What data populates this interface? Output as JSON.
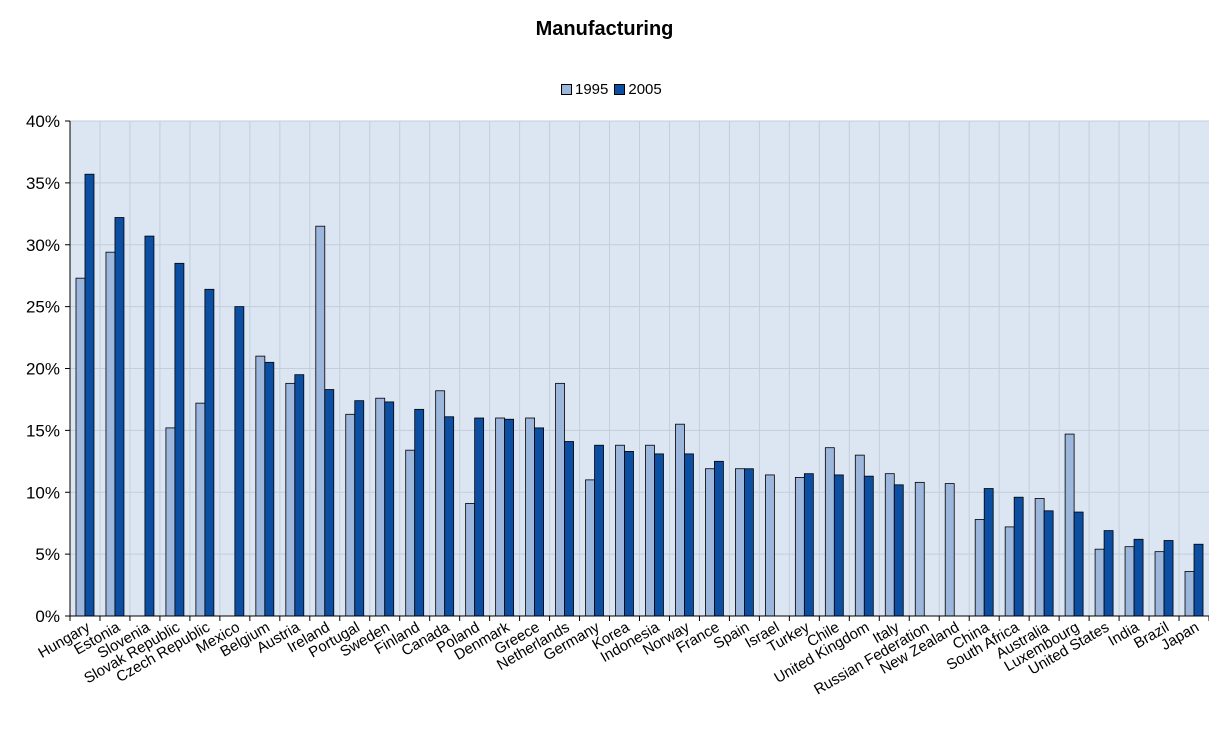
{
  "chart_data": {
    "type": "bar",
    "title": "Manufacturing",
    "xlabel": "",
    "ylabel": "",
    "ylim": [
      0,
      0.4
    ],
    "yticks": [
      0,
      0.05,
      0.1,
      0.15,
      0.2,
      0.25,
      0.3,
      0.35,
      0.4
    ],
    "ytick_labels": [
      "0%",
      "5%",
      "10%",
      "15%",
      "20%",
      "25%",
      "30%",
      "35%",
      "40%"
    ],
    "legend_position": "top-center",
    "grid": true,
    "categories": [
      "Hungary",
      "Estonia",
      "Slovenia",
      "Slovak Republic",
      "Czech Republic",
      "Mexico",
      "Belgium",
      "Austria",
      "Ireland",
      "Portugal",
      "Sweden",
      "Finland",
      "Canada",
      "Poland",
      "Denmark",
      "Greece",
      "Netherlands",
      "Germany",
      "Korea",
      "Indonesia",
      "Norway",
      "France",
      "Spain",
      "Israel",
      "Turkey",
      "Chile",
      "United Kingdom",
      "Italy",
      "Russian Federation",
      "New Zealand",
      "China",
      "South Africa",
      "Australia",
      "Luxembourg",
      "United States",
      "India",
      "Brazil",
      "Japan"
    ],
    "series": [
      {
        "name": "1995",
        "color": "#9DB6DB",
        "values": [
          0.273,
          0.294,
          null,
          0.152,
          0.172,
          null,
          0.21,
          0.188,
          0.315,
          0.163,
          0.176,
          0.134,
          0.182,
          0.091,
          0.16,
          0.16,
          0.188,
          0.11,
          0.138,
          0.138,
          0.155,
          0.119,
          0.119,
          0.114,
          0.112,
          0.136,
          0.13,
          0.115,
          0.108,
          0.107,
          0.078,
          0.072,
          0.095,
          0.147,
          0.054,
          0.056,
          0.052,
          0.036
        ]
      },
      {
        "name": "2005",
        "color": "#0B4EA2",
        "values": [
          0.357,
          0.322,
          0.307,
          0.285,
          0.264,
          0.25,
          0.205,
          0.195,
          0.183,
          0.174,
          0.173,
          0.167,
          0.161,
          0.16,
          0.159,
          0.152,
          0.141,
          0.138,
          0.133,
          0.131,
          0.131,
          0.125,
          0.119,
          null,
          0.115,
          0.114,
          0.113,
          0.106,
          null,
          null,
          0.103,
          0.096,
          0.085,
          0.084,
          0.069,
          0.062,
          0.061,
          0.058
        ]
      }
    ]
  }
}
